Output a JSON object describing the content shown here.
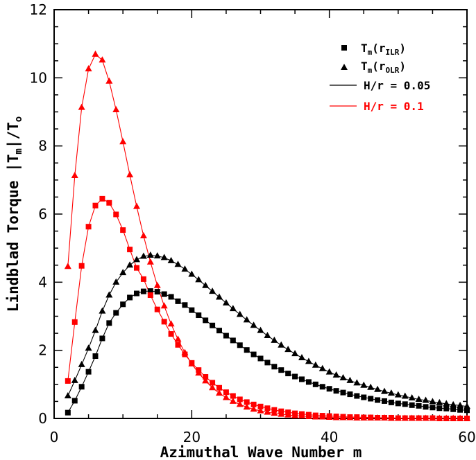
{
  "chart_data": {
    "type": "line",
    "title": "",
    "xlabel": "Azimuthal Wave Number m",
    "ylabel": "Lindblad Torque |T_m|/T_o",
    "xlim": [
      0,
      60
    ],
    "ylim": [
      0,
      12
    ],
    "xticks": [
      0,
      20,
      40,
      60
    ],
    "yticks": [
      0,
      2,
      4,
      6,
      8,
      10,
      12
    ],
    "legend_position": "top-right",
    "legend": {
      "ilr_label": "T_m(r_ILR)",
      "olr_label": "T_m(r_OLR)",
      "h005_label": "H/r = 0.05",
      "h01_label": "H/r = 0.1"
    },
    "colors": {
      "h005": "#000000",
      "h01": "#ff0000"
    },
    "series": [
      {
        "name": "T_m(r_ILR), H/r = 0.05",
        "color": "#000000",
        "marker": "square",
        "x": [
          2,
          3,
          4,
          5,
          6,
          7,
          8,
          9,
          10,
          11,
          12,
          13,
          14,
          15,
          16,
          17,
          18,
          19,
          20,
          21,
          22,
          23,
          24,
          25,
          26,
          27,
          28,
          29,
          30,
          31,
          32,
          33,
          34,
          35,
          36,
          37,
          38,
          39,
          40,
          41,
          42,
          43,
          44,
          45,
          46,
          47,
          48,
          49,
          50,
          51,
          52,
          53,
          54,
          55,
          56,
          57,
          58,
          59,
          60
        ],
        "y": [
          0.17,
          0.52,
          0.93,
          1.37,
          1.83,
          2.35,
          2.8,
          3.1,
          3.35,
          3.55,
          3.67,
          3.73,
          3.74,
          3.72,
          3.65,
          3.57,
          3.44,
          3.33,
          3.18,
          3.03,
          2.88,
          2.73,
          2.58,
          2.43,
          2.29,
          2.15,
          2.01,
          1.88,
          1.76,
          1.64,
          1.52,
          1.42,
          1.32,
          1.23,
          1.15,
          1.07,
          1.0,
          0.93,
          0.87,
          0.81,
          0.76,
          0.71,
          0.66,
          0.62,
          0.58,
          0.54,
          0.51,
          0.47,
          0.44,
          0.42,
          0.39,
          0.37,
          0.34,
          0.32,
          0.3,
          0.29,
          0.27,
          0.25,
          0.24
        ]
      },
      {
        "name": "T_m(r_OLR), H/r = 0.05",
        "color": "#000000",
        "marker": "triangle",
        "x": [
          2,
          3,
          4,
          5,
          6,
          7,
          8,
          9,
          10,
          11,
          12,
          13,
          14,
          15,
          16,
          17,
          18,
          19,
          20,
          21,
          22,
          23,
          24,
          25,
          26,
          27,
          28,
          29,
          30,
          31,
          32,
          33,
          34,
          35,
          36,
          37,
          38,
          39,
          40,
          41,
          42,
          43,
          44,
          45,
          46,
          47,
          48,
          49,
          50,
          51,
          52,
          53,
          54,
          55,
          56,
          57,
          58,
          59,
          60
        ],
        "y": [
          0.66,
          1.11,
          1.58,
          2.06,
          2.58,
          3.15,
          3.62,
          4.0,
          4.28,
          4.5,
          4.66,
          4.76,
          4.79,
          4.77,
          4.72,
          4.63,
          4.52,
          4.38,
          4.23,
          4.07,
          3.9,
          3.73,
          3.56,
          3.39,
          3.22,
          3.05,
          2.89,
          2.73,
          2.58,
          2.43,
          2.29,
          2.15,
          2.02,
          1.9,
          1.78,
          1.67,
          1.56,
          1.46,
          1.36,
          1.27,
          1.19,
          1.11,
          1.04,
          0.97,
          0.91,
          0.85,
          0.79,
          0.74,
          0.69,
          0.65,
          0.6,
          0.56,
          0.53,
          0.49,
          0.46,
          0.43,
          0.4,
          0.38,
          0.35
        ]
      },
      {
        "name": "T_m(r_ILR), H/r = 0.1",
        "color": "#ff0000",
        "marker": "square",
        "x": [
          2,
          3,
          4,
          5,
          6,
          7,
          8,
          9,
          10,
          11,
          12,
          13,
          14,
          15,
          16,
          17,
          18,
          19,
          20,
          21,
          22,
          23,
          24,
          25,
          26,
          27,
          28,
          29,
          30,
          31,
          32,
          33,
          34,
          35,
          36,
          37,
          38,
          39,
          40,
          41,
          42,
          43,
          44,
          45,
          46,
          47,
          48,
          49,
          50,
          51,
          52,
          53,
          54,
          55,
          56,
          57,
          58,
          59,
          60
        ],
        "y": [
          1.1,
          2.83,
          4.48,
          5.63,
          6.25,
          6.45,
          6.33,
          5.99,
          5.53,
          4.96,
          4.42,
          4.09,
          3.62,
          3.2,
          2.84,
          2.48,
          2.16,
          1.88,
          1.63,
          1.42,
          1.22,
          1.05,
          0.9,
          0.77,
          0.66,
          0.56,
          0.48,
          0.41,
          0.35,
          0.3,
          0.25,
          0.21,
          0.18,
          0.15,
          0.13,
          0.11,
          0.09,
          0.08,
          0.07,
          0.06,
          0.05,
          0.04,
          0.04,
          0.03,
          0.03,
          0.02,
          0.02,
          0.02,
          0.01,
          0.01,
          0.01,
          0.01,
          0.01,
          0.01,
          0.0,
          0.0,
          0.0,
          0.0,
          0.0
        ]
      },
      {
        "name": "T_m(r_OLR), H/r = 0.1",
        "color": "#ff0000",
        "marker": "triangle",
        "x": [
          2,
          3,
          4,
          5,
          6,
          7,
          8,
          9,
          10,
          11,
          12,
          13,
          14,
          15,
          16,
          17,
          18,
          19,
          20,
          21,
          22,
          23,
          24,
          25,
          26,
          27,
          28,
          29,
          30,
          31,
          32,
          33,
          34,
          35,
          36,
          37,
          38,
          39,
          40,
          41,
          42,
          43,
          44,
          45,
          46,
          47,
          48,
          49,
          50,
          51,
          52,
          53,
          54,
          55,
          56,
          57,
          58,
          59,
          60
        ],
        "y": [
          4.46,
          7.13,
          9.13,
          10.26,
          10.69,
          10.52,
          9.9,
          9.06,
          8.12,
          7.15,
          6.22,
          5.36,
          4.59,
          3.9,
          3.3,
          2.77,
          2.32,
          1.93,
          1.6,
          1.33,
          1.1,
          0.9,
          0.74,
          0.61,
          0.5,
          0.41,
          0.33,
          0.27,
          0.22,
          0.18,
          0.15,
          0.12,
          0.1,
          0.08,
          0.07,
          0.05,
          0.04,
          0.04,
          0.03,
          0.02,
          0.02,
          0.02,
          0.01,
          0.01,
          0.01,
          0.01,
          0.01,
          0.0,
          0.0,
          0.0,
          0.0,
          0.0,
          0.0,
          0.0,
          0.0,
          0.0,
          0.0,
          0.0,
          0.0
        ]
      }
    ]
  }
}
